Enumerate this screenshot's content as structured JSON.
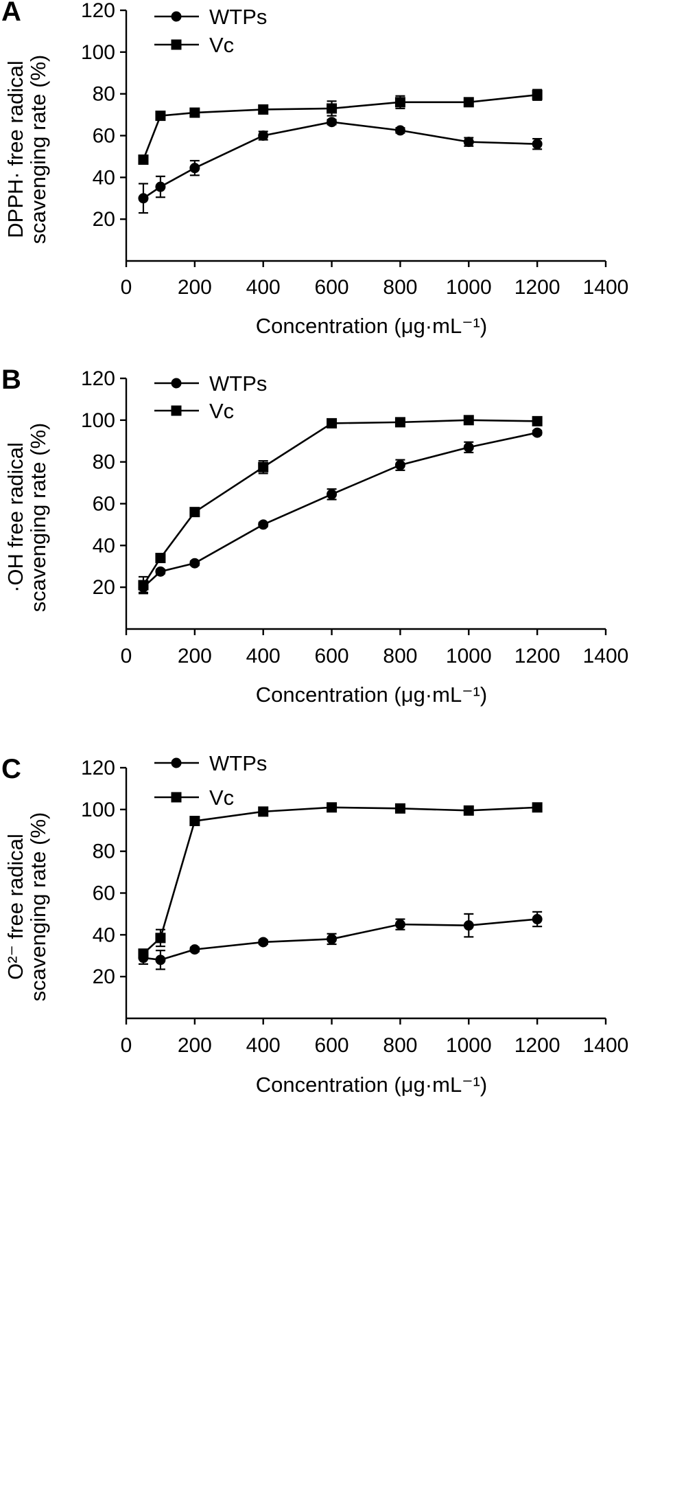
{
  "chart_data": [
    {
      "type": "line",
      "panel": "A",
      "ylabel": [
        "DPPH· free radical",
        "scavenging rate (%)"
      ],
      "xlabel": "Concentration (μg·mL⁻¹)",
      "xlim": [
        0,
        1400
      ],
      "ylim": [
        0,
        120
      ],
      "xticks": [
        0,
        200,
        400,
        600,
        800,
        1000,
        1200,
        1400
      ],
      "yticks": [
        20,
        40,
        60,
        80,
        100,
        120
      ],
      "legend_position": "top-left",
      "x": [
        50,
        100,
        200,
        400,
        600,
        800,
        1000,
        1200
      ],
      "series": [
        {
          "name": "WTPs",
          "marker": "circle",
          "values": [
            30,
            35.5,
            44.5,
            60,
            66.5,
            62.5,
            57,
            56
          ],
          "errors": [
            7,
            5,
            3.5,
            2,
            1.2,
            1.2,
            2,
            2.5
          ]
        },
        {
          "name": "Vc",
          "marker": "square",
          "values": [
            48.5,
            69.5,
            71,
            72.5,
            73,
            76,
            76,
            79.5
          ],
          "errors": [
            1,
            1.5,
            1,
            1,
            3.5,
            3,
            1.5,
            2.5
          ]
        }
      ]
    },
    {
      "type": "line",
      "panel": "B",
      "ylabel": [
        "·OH free radical",
        "scavenging rate (%)"
      ],
      "xlabel": "Concentration (μg·mL⁻¹)",
      "xlim": [
        0,
        1400
      ],
      "ylim": [
        0,
        120
      ],
      "xticks": [
        0,
        200,
        400,
        600,
        800,
        1000,
        1200,
        1400
      ],
      "yticks": [
        20,
        40,
        60,
        80,
        100,
        120
      ],
      "legend_position": "top-left",
      "x": [
        50,
        100,
        200,
        400,
        600,
        800,
        1000,
        1200
      ],
      "series": [
        {
          "name": "WTPs",
          "marker": "circle",
          "values": [
            20,
            27.5,
            31.5,
            50,
            64.5,
            78.5,
            87,
            94
          ],
          "errors": [
            2.5,
            1,
            1,
            1,
            2.5,
            2.5,
            2.5,
            1
          ]
        },
        {
          "name": "Vc",
          "marker": "square",
          "values": [
            21,
            34,
            56,
            77.5,
            98.5,
            99,
            100,
            99.5
          ],
          "errors": [
            4,
            1,
            1,
            3,
            1,
            1,
            1,
            1
          ]
        }
      ]
    },
    {
      "type": "line",
      "panel": "C",
      "ylabel": [
        "O²⁻ free radical",
        "scavenging rate (%)"
      ],
      "xlabel": "Concentration (μg·mL⁻¹)",
      "xlim": [
        0,
        1400
      ],
      "ylim": [
        0,
        120
      ],
      "xticks": [
        0,
        200,
        400,
        600,
        800,
        1000,
        1200,
        1400
      ],
      "yticks": [
        20,
        40,
        60,
        80,
        100,
        120
      ],
      "legend_position": "top-left",
      "x": [
        50,
        100,
        200,
        400,
        600,
        800,
        1000,
        1200
      ],
      "series": [
        {
          "name": "WTPs",
          "marker": "circle",
          "values": [
            29,
            28,
            33,
            36.5,
            38,
            45,
            44.5,
            47.5
          ],
          "errors": [
            3,
            4.5,
            1,
            1,
            2.5,
            2.5,
            5.5,
            3.5
          ]
        },
        {
          "name": "Vc",
          "marker": "square",
          "values": [
            31,
            38.5,
            94.5,
            99,
            101,
            100.5,
            99.5,
            101
          ],
          "errors": [
            2,
            4,
            1,
            1,
            1,
            1,
            1,
            1
          ]
        }
      ]
    }
  ]
}
